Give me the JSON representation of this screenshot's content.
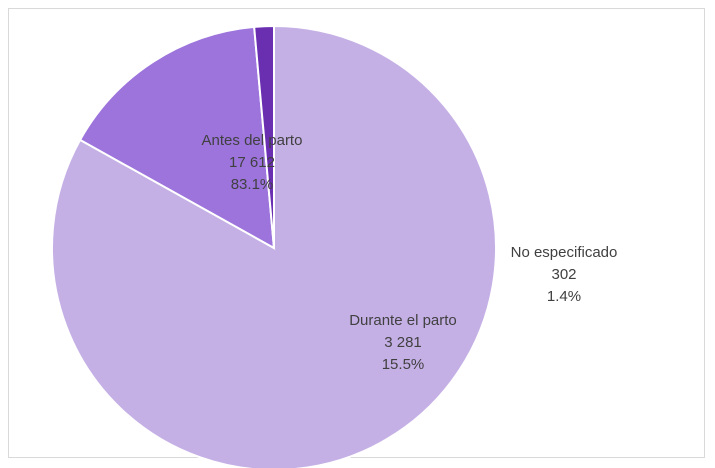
{
  "chart_data": {
    "type": "pie",
    "title": "",
    "slices": [
      {
        "label": "Antes del parto",
        "value_text": "17 612",
        "percent_text": "83.1%",
        "value": 17612,
        "percent": 83.1,
        "color": "#c5b0e6"
      },
      {
        "label": "Durante el parto",
        "value_text": "3 281",
        "percent_text": "15.5%",
        "value": 3281,
        "percent": 15.5,
        "color": "#9c74dc"
      },
      {
        "label": "No especificado",
        "value_text": "302",
        "percent_text": "1.4%",
        "value": 302,
        "percent": 1.4,
        "color": "#6a2fb1"
      }
    ],
    "legend": "none",
    "start_angle_deg": 90,
    "direction": "clockwise"
  }
}
